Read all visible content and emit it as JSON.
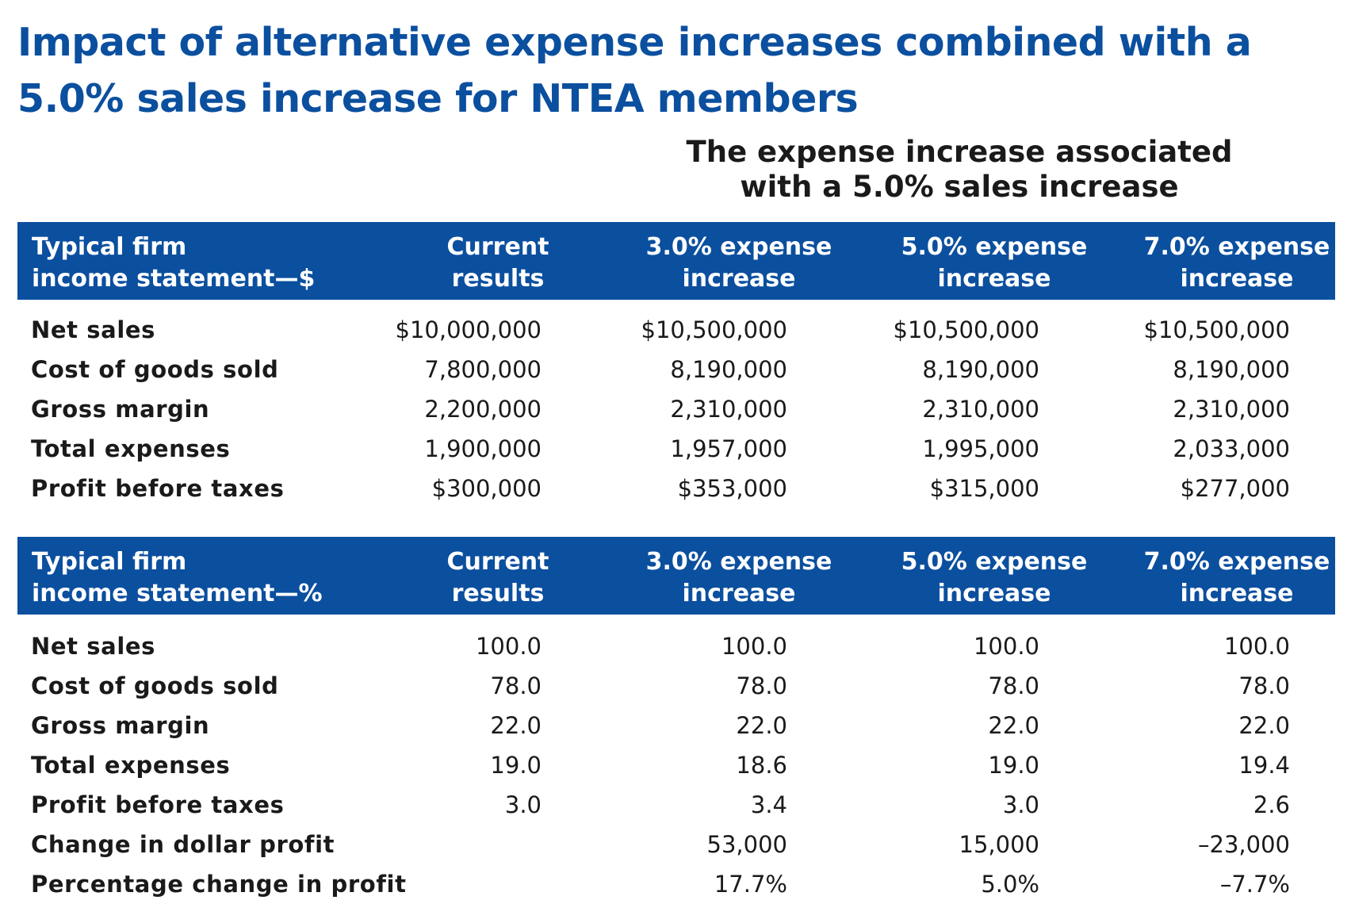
{
  "title": {
    "line1": "Impact of alternative expense increases combined with a",
    "line2": "5.0% sales increase for NTEA members"
  },
  "subtitle": {
    "line1": "The expense increase associated",
    "line2": "with a 5.0% sales increase"
  },
  "colors": {
    "accent_blue": "#0b4f9f",
    "header_text": "#ffffff",
    "body_text": "#1a1a1a"
  },
  "dollar_table": {
    "headers": [
      {
        "line1": "Typical firm",
        "line2": "income statement—$"
      },
      {
        "line1": "Current",
        "line2": "results"
      },
      {
        "line1": "3.0% expense",
        "line2": "increase"
      },
      {
        "line1": "5.0% expense",
        "line2": "increase"
      },
      {
        "line1": "7.0% expense",
        "line2": "increase"
      }
    ],
    "rows": [
      {
        "label": "Net sales",
        "values": [
          "$10,000,000",
          "$10,500,000",
          "$10,500,000",
          "$10,500,000"
        ]
      },
      {
        "label": "Cost of goods sold",
        "values": [
          "7,800,000",
          "8,190,000",
          "8,190,000",
          "8,190,000"
        ]
      },
      {
        "label": "Gross margin",
        "values": [
          "2,200,000",
          "2,310,000",
          "2,310,000",
          "2,310,000"
        ]
      },
      {
        "label": "Total expenses",
        "values": [
          "1,900,000",
          "1,957,000",
          "1,995,000",
          "2,033,000"
        ]
      },
      {
        "label": "Profit before taxes",
        "values": [
          "$300,000",
          "$353,000",
          "$315,000",
          "$277,000"
        ]
      }
    ]
  },
  "percent_table": {
    "headers": [
      {
        "line1": "Typical firm",
        "line2": "income statement—%"
      },
      {
        "line1": "Current",
        "line2": "results"
      },
      {
        "line1": "3.0% expense",
        "line2": "increase"
      },
      {
        "line1": "5.0% expense",
        "line2": "increase"
      },
      {
        "line1": "7.0% expense",
        "line2": "increase"
      }
    ],
    "rows": [
      {
        "label": "Net sales",
        "values": [
          "100.0",
          "100.0",
          "100.0",
          "100.0"
        ]
      },
      {
        "label": "Cost of goods sold",
        "values": [
          "78.0",
          "78.0",
          "78.0",
          "78.0"
        ]
      },
      {
        "label": "Gross margin",
        "values": [
          "22.0",
          "22.0",
          "22.0",
          "22.0"
        ]
      },
      {
        "label": "Total expenses",
        "values": [
          "19.0",
          "18.6",
          "19.0",
          "19.4"
        ]
      },
      {
        "label": "Profit before taxes",
        "values": [
          "3.0",
          "3.4",
          "3.0",
          "2.6"
        ]
      },
      {
        "label": "Change in dollar profit",
        "values": [
          "",
          "53,000",
          "15,000",
          "–23,000"
        ]
      },
      {
        "label": "Percentage change in profit",
        "values": [
          "",
          "17.7%",
          "5.0%",
          "–7.7%"
        ]
      }
    ]
  }
}
